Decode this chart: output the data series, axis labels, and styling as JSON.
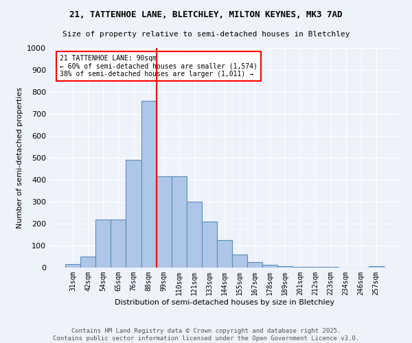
{
  "title1": "21, TATTENHOE LANE, BLETCHLEY, MILTON KEYNES, MK3 7AD",
  "title2": "Size of property relative to semi-detached houses in Bletchley",
  "xlabel": "Distribution of semi-detached houses by size in Bletchley",
  "ylabel": "Number of semi-detached properties",
  "bin_labels": [
    "31sqm",
    "42sqm",
    "54sqm",
    "65sqm",
    "76sqm",
    "88sqm",
    "99sqm",
    "110sqm",
    "121sqm",
    "133sqm",
    "144sqm",
    "155sqm",
    "167sqm",
    "178sqm",
    "189sqm",
    "201sqm",
    "212sqm",
    "223sqm",
    "234sqm",
    "246sqm",
    "257sqm"
  ],
  "bar_heights": [
    15,
    50,
    220,
    220,
    490,
    760,
    415,
    415,
    300,
    210,
    125,
    60,
    25,
    12,
    5,
    4,
    2,
    2,
    1,
    1,
    5
  ],
  "bar_color": "#aec6e8",
  "bar_edge_color": "#5b8db8",
  "vline_x": 5.5,
  "vline_color": "red",
  "annotation_title": "21 TATTENHOE LANE: 90sqm",
  "annotation_line1": "← 60% of semi-detached houses are smaller (1,574)",
  "annotation_line2": "38% of semi-detached houses are larger (1,011) →",
  "ylim": [
    0,
    1000
  ],
  "yticks": [
    0,
    100,
    200,
    300,
    400,
    500,
    600,
    700,
    800,
    900,
    1000
  ],
  "footer1": "Contains HM Land Registry data © Crown copyright and database right 2025.",
  "footer2": "Contains public sector information licensed under the Open Government Licence v3.0.",
  "bg_color": "#eef2fb",
  "grid_color": "#ffffff"
}
